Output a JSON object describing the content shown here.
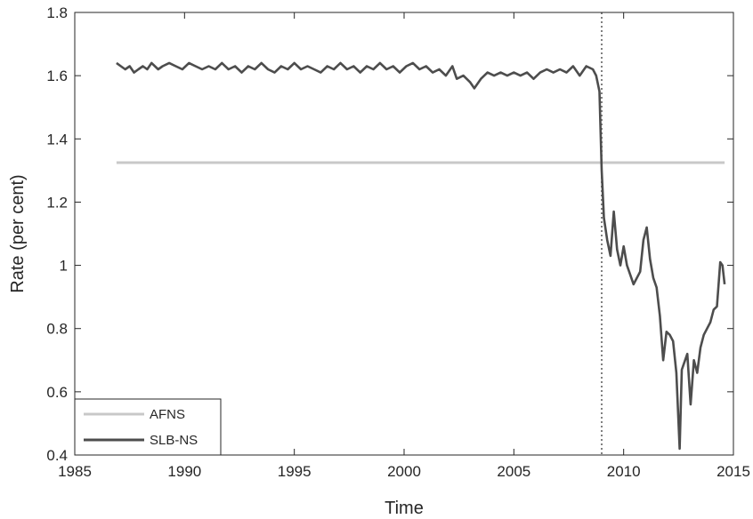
{
  "chart_data": {
    "type": "line",
    "title": "",
    "xlabel": "Time",
    "ylabel": "Rate (per cent)",
    "xlim": [
      1985,
      2015
    ],
    "ylim": [
      0.4,
      1.8
    ],
    "x_ticks": [
      1985,
      1990,
      1995,
      2000,
      2005,
      2010,
      2015
    ],
    "x_tick_labels": [
      "1985",
      "1990",
      "1995",
      "2000",
      "2005",
      "2010",
      "2015"
    ],
    "y_ticks": [
      0.4,
      0.6,
      0.8,
      1.0,
      1.2,
      1.4,
      1.6,
      1.8
    ],
    "y_tick_labels": [
      "0.4",
      "0.6",
      "0.8",
      "1",
      "1.2",
      "1.4",
      "1.6",
      "1.8"
    ],
    "grid": false,
    "legend_position": "bottom-left",
    "vertical_marker": {
      "x": 2009.0,
      "style": "dotted",
      "color": "#808080"
    },
    "series": [
      {
        "name": "AFNS",
        "color": "#c8c8c8",
        "x": [
          1986.9,
          2014.6
        ],
        "y": [
          1.325,
          1.325
        ]
      },
      {
        "name": "SLB-NS",
        "color": "#4d4d4d",
        "x": [
          1986.9,
          1987.1,
          1987.3,
          1987.5,
          1987.7,
          1987.9,
          1988.1,
          1988.3,
          1988.5,
          1988.8,
          1989.0,
          1989.3,
          1989.6,
          1989.9,
          1990.2,
          1990.5,
          1990.8,
          1991.1,
          1991.4,
          1991.7,
          1992.0,
          1992.3,
          1992.6,
          1992.9,
          1993.2,
          1993.5,
          1993.8,
          1994.1,
          1994.4,
          1994.7,
          1995.0,
          1995.3,
          1995.6,
          1995.9,
          1996.2,
          1996.5,
          1996.8,
          1997.1,
          1997.4,
          1997.7,
          1998.0,
          1998.3,
          1998.6,
          1998.9,
          1999.2,
          1999.5,
          1999.8,
          2000.1,
          2000.4,
          2000.7,
          2001.0,
          2001.3,
          2001.6,
          2001.9,
          2002.2,
          2002.4,
          2002.7,
          2003.0,
          2003.2,
          2003.5,
          2003.8,
          2004.1,
          2004.4,
          2004.7,
          2005.0,
          2005.3,
          2005.6,
          2005.9,
          2006.2,
          2006.5,
          2006.8,
          2007.1,
          2007.4,
          2007.7,
          2008.0,
          2008.3,
          2008.6,
          2008.75,
          2008.9,
          2009.0,
          2009.1,
          2009.25,
          2009.4,
          2009.55,
          2009.7,
          2009.85,
          2010.0,
          2010.15,
          2010.3,
          2010.45,
          2010.6,
          2010.75,
          2010.9,
          2011.05,
          2011.2,
          2011.35,
          2011.5,
          2011.65,
          2011.8,
          2011.95,
          2012.1,
          2012.25,
          2012.4,
          2012.55,
          2012.65,
          2012.75,
          2012.9,
          2013.05,
          2013.2,
          2013.35,
          2013.5,
          2013.65,
          2013.8,
          2013.95,
          2014.1,
          2014.25,
          2014.4,
          2014.5,
          2014.6
        ],
        "y": [
          1.64,
          1.63,
          1.62,
          1.63,
          1.61,
          1.62,
          1.63,
          1.62,
          1.64,
          1.62,
          1.63,
          1.64,
          1.63,
          1.62,
          1.64,
          1.63,
          1.62,
          1.63,
          1.62,
          1.64,
          1.62,
          1.63,
          1.61,
          1.63,
          1.62,
          1.64,
          1.62,
          1.61,
          1.63,
          1.62,
          1.64,
          1.62,
          1.63,
          1.62,
          1.61,
          1.63,
          1.62,
          1.64,
          1.62,
          1.63,
          1.61,
          1.63,
          1.62,
          1.64,
          1.62,
          1.63,
          1.61,
          1.63,
          1.64,
          1.62,
          1.63,
          1.61,
          1.62,
          1.6,
          1.63,
          1.59,
          1.6,
          1.58,
          1.56,
          1.59,
          1.61,
          1.6,
          1.61,
          1.6,
          1.61,
          1.6,
          1.61,
          1.59,
          1.61,
          1.62,
          1.61,
          1.62,
          1.61,
          1.63,
          1.6,
          1.63,
          1.62,
          1.6,
          1.55,
          1.3,
          1.15,
          1.08,
          1.03,
          1.17,
          1.05,
          1.0,
          1.06,
          1.0,
          0.97,
          0.94,
          0.96,
          0.98,
          1.08,
          1.12,
          1.02,
          0.96,
          0.93,
          0.84,
          0.7,
          0.79,
          0.78,
          0.76,
          0.66,
          0.42,
          0.67,
          0.69,
          0.72,
          0.56,
          0.7,
          0.66,
          0.74,
          0.78,
          0.8,
          0.82,
          0.86,
          0.87,
          1.01,
          1.0,
          0.94
        ]
      }
    ]
  }
}
